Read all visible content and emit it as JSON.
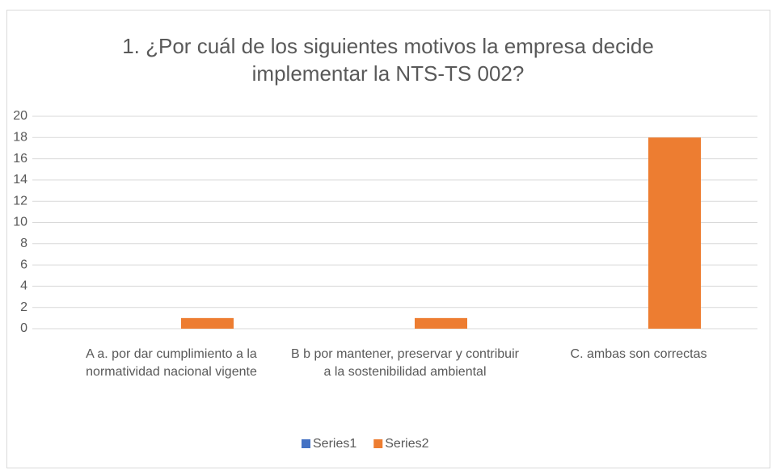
{
  "chart_data": {
    "type": "bar",
    "title": "1.      ¿Por cuál de los siguientes motivos la empresa decide implementar la NTS-TS 002?",
    "categories": [
      "A a. por dar cumplimiento a la normatividad nacional vigente",
      "B b por mantener, preservar y contribuir a la sostenibilidad ambiental",
      "C. ambas son correctas"
    ],
    "series": [
      {
        "name": "Series1",
        "color": "#4472c4",
        "values": [
          0,
          0,
          0
        ]
      },
      {
        "name": "Series2",
        "color": "#ed7d31",
        "values": [
          1,
          1,
          18
        ]
      }
    ],
    "ylim": [
      0,
      20
    ],
    "yticks": [
      0,
      2,
      4,
      6,
      8,
      10,
      12,
      14,
      16,
      18,
      20
    ],
    "grid": true,
    "legend": "bottom"
  }
}
